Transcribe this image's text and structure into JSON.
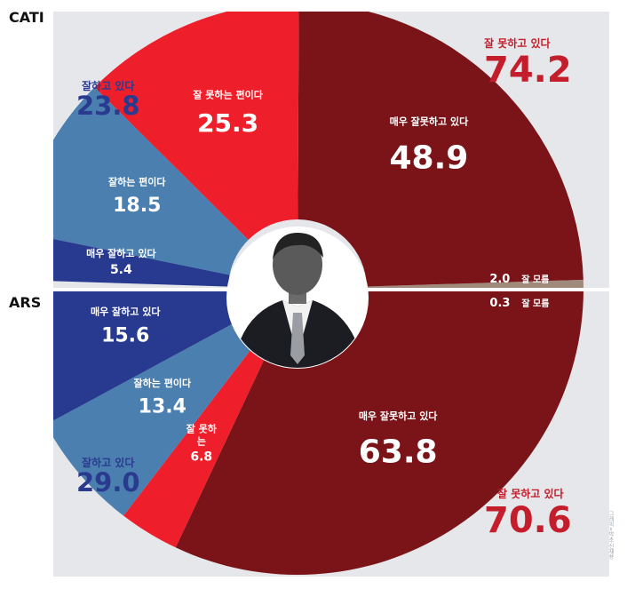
{
  "sections": {
    "top": "CATI",
    "bottom": "ARS"
  },
  "summary": {
    "cati_negative": {
      "label": "잘 못하고 있다",
      "value": "74.2"
    },
    "cati_positive": {
      "label": "잘하고 있다",
      "value": "23.8"
    },
    "ars_negative": {
      "label": "잘 못하고 있다",
      "value": "70.6"
    },
    "ars_positive": {
      "label": "잘하고 있다",
      "value": "29.0"
    }
  },
  "credit": "그래픽=박초·신재용",
  "colors": {
    "very_bad": "#7a1418",
    "bad": "#ee1f2a",
    "good": "#4a7fb0",
    "very_good": "#273a8f",
    "dont_know": "#a08a7c",
    "negative_text": "#c41d2b",
    "positive_text": "#2a3b8f",
    "panel": "#e6e7ea"
  },
  "chart_data": [
    {
      "type": "pie",
      "survey": "CATI",
      "categories": [
        "매우 잘못하고 있다",
        "잘 못하는 편이다",
        "잘하는 편이다",
        "매우 잘하고 있다",
        "잘 모름"
      ],
      "values": [
        48.9,
        25.3,
        18.5,
        5.4,
        2.0
      ],
      "labels": [
        "48.9",
        "25.3",
        "18.5",
        "5.4",
        "2.0"
      ]
    },
    {
      "type": "pie",
      "survey": "ARS",
      "categories": [
        "매우 잘못하고 있다",
        "잘 못하는 편이다",
        "잘하는 편이다",
        "매우 잘하고 있다",
        "잘 모름"
      ],
      "values": [
        63.8,
        6.8,
        13.4,
        15.6,
        0.3
      ],
      "labels": [
        "63.8",
        "6.8",
        "13.4",
        "15.6",
        "0.3"
      ]
    }
  ]
}
